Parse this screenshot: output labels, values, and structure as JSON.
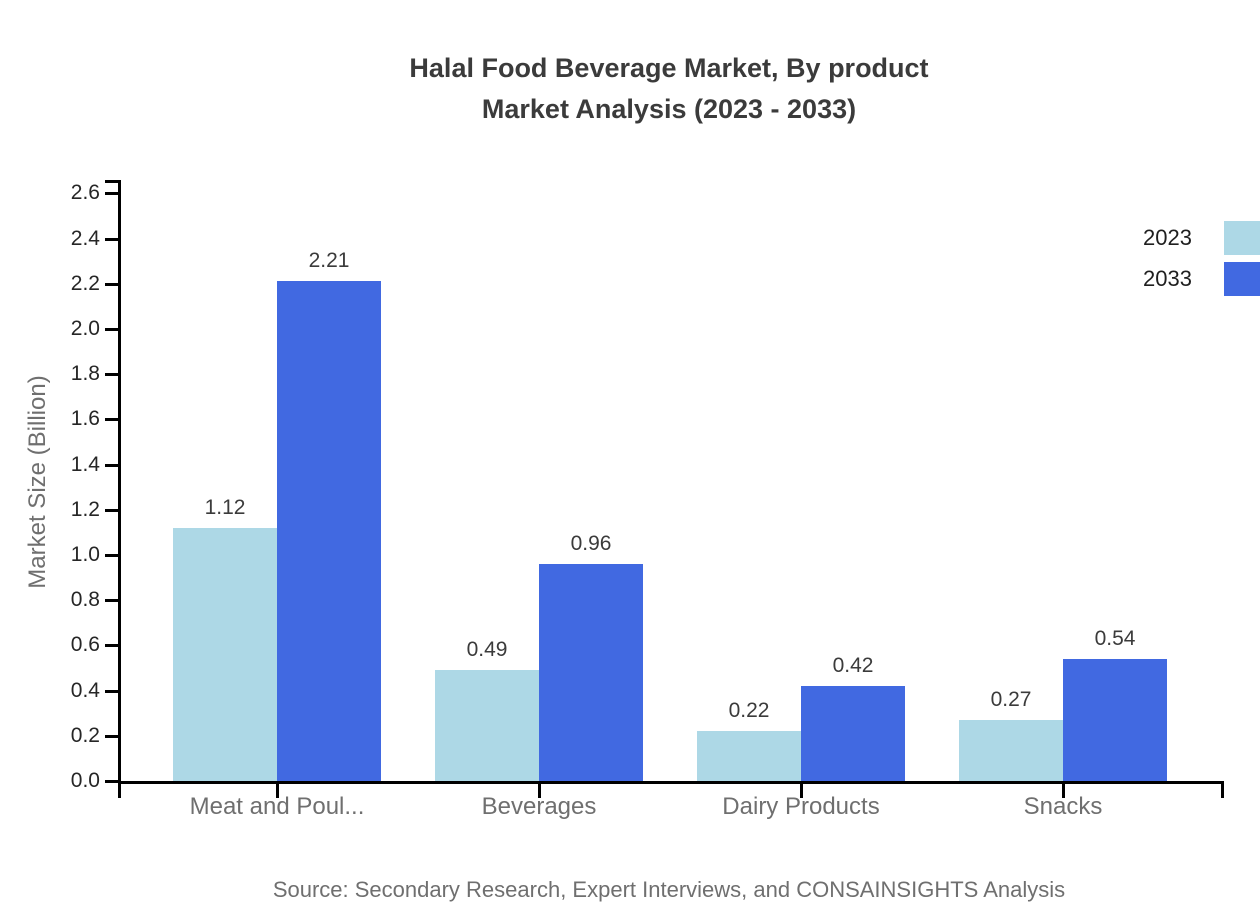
{
  "title": {
    "line1": "Halal Food Beverage Market, By product",
    "line2": "Market Analysis (2023 - 2033)"
  },
  "source_note": "Source: Secondary Research, Expert Interviews, and CONSAINSIGHTS Analysis",
  "chart_data": {
    "type": "bar",
    "title": "Halal Food Beverage Market, By product Market Analysis (2023 - 2033)",
    "categories": [
      "Meat and Poul...",
      "Beverages",
      "Dairy Products",
      "Snacks"
    ],
    "series": [
      {
        "name": "2023",
        "color": "#ADD8E6",
        "values": [
          1.12,
          0.49,
          0.22,
          0.27
        ]
      },
      {
        "name": "2033",
        "color": "#4169E1",
        "values": [
          2.21,
          0.96,
          0.42,
          0.54
        ]
      }
    ],
    "value_labels": [
      "1.12",
      "2.21",
      "0.49",
      "0.96",
      "0.22",
      "0.42",
      "0.27",
      "0.54"
    ],
    "xlabel": "",
    "ylabel": "Market Size (Billion)",
    "ylim": [
      0,
      2.65
    ],
    "ytick_labels": [
      "0.0",
      "0.2",
      "0.4",
      "0.6",
      "0.8",
      "1.0",
      "1.2",
      "1.4",
      "1.6",
      "1.8",
      "2.0",
      "2.2",
      "2.4",
      "2.6"
    ],
    "grid": false,
    "legend_position": "top-right",
    "bar_value_labels_visible": true
  }
}
